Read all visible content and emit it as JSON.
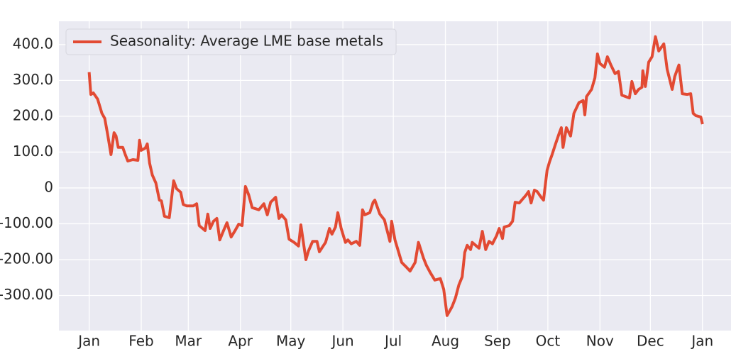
{
  "chart_data": {
    "type": "line",
    "x": [
      0,
      1,
      2.5,
      5,
      7.6,
      9.3,
      11,
      13,
      14.8,
      16,
      17.3,
      20,
      21.5,
      23,
      26,
      29,
      30,
      31,
      33.4,
      34.6,
      36,
      37.6,
      39.7,
      41.8,
      43,
      44.8,
      47.7,
      50.3,
      52,
      54.5,
      56,
      58,
      62,
      64,
      65.5,
      69,
      70.6,
      72,
      74,
      76,
      77.7,
      80,
      82,
      84.5,
      86.6,
      89,
      91,
      93,
      95,
      97,
      101,
      104,
      106,
      108,
      111,
      113,
      114.5,
      117,
      119,
      122,
      124.6,
      126,
      129,
      130.5,
      133,
      135.6,
      137,
      140.7,
      143,
      144.5,
      146.6,
      148,
      150,
      152.5,
      154,
      156,
      159,
      161,
      162.7,
      164,
      167,
      169,
      170,
      173,
      175.7,
      177,
      179,
      180,
      182,
      186,
      189,
      191,
      194,
      196,
      199,
      200.7,
      203,
      205.7,
      209,
      211,
      213,
      216,
      218,
      220,
      222,
      223.5,
      225,
      227,
      228,
      230,
      232,
      234,
      236,
      238,
      240,
      242.5,
      244,
      246,
      247,
      250,
      252,
      253.5,
      256,
      260,
      261.5,
      263,
      265,
      266.6,
      269,
      270.4,
      272.5,
      274,
      275.5,
      277.6,
      279.7,
      281,
      282,
      284,
      286.5,
      288.5,
      291.5,
      294,
      295,
      296,
      299,
      301,
      302.5,
      304,
      306.7,
      308.4,
      310.5,
      313,
      315,
      317,
      321.5,
      323,
      325,
      327,
      329,
      329.5,
      331,
      333,
      335,
      337,
      339,
      342,
      344,
      347,
      348.5,
      351,
      353,
      356,
      358,
      359.5,
      361,
      364,
      365
    ],
    "series": [
      {
        "name": "Seasonality: Average LME base metals",
        "color": "#e24a33",
        "values": [
          323,
          261,
          265,
          248,
          208,
          194,
          149,
          93,
          154,
          145,
          113,
          113,
          93,
          75,
          79,
          77,
          133,
          105,
          111,
          123,
          69,
          36,
          14,
          -34,
          -36,
          -79,
          -83,
          20,
          -2,
          -12,
          -46,
          -50,
          -50,
          -44,
          -105,
          -119,
          -73,
          -113,
          -93,
          -85,
          -145,
          -119,
          -97,
          -137,
          -121,
          -101,
          -105,
          4,
          -20,
          -55,
          -61,
          -44,
          -75,
          -40,
          -26,
          -85,
          -75,
          -89,
          -143,
          -152,
          -162,
          -103,
          -200,
          -176,
          -149,
          -149,
          -178,
          -152,
          -113,
          -129,
          -109,
          -69,
          -113,
          -152,
          -145,
          -156,
          -149,
          -160,
          -61,
          -75,
          -69,
          -40,
          -34,
          -73,
          -89,
          -113,
          -149,
          -93,
          -145,
          -208,
          -222,
          -232,
          -208,
          -152,
          -196,
          -216,
          -236,
          -257,
          -253,
          -283,
          -356,
          -331,
          -307,
          -271,
          -248,
          -180,
          -160,
          -172,
          -152,
          -160,
          -168,
          -121,
          -172,
          -149,
          -156,
          -133,
          -113,
          -141,
          -109,
          -105,
          -93,
          -40,
          -42,
          -20,
          -10,
          -42,
          -6,
          -10,
          -26,
          -34,
          49,
          73,
          93,
          123,
          152,
          168,
          113,
          168,
          145,
          208,
          238,
          244,
          204,
          255,
          275,
          307,
          374,
          347,
          337,
          366,
          343,
          319,
          325,
          259,
          251,
          297,
          263,
          275,
          281,
          327,
          283,
          351,
          366,
          422,
          382,
          402,
          331,
          275,
          311,
          343,
          263,
          261,
          263,
          208,
          202,
          198,
          178
        ]
      }
    ],
    "xlim": [
      -18,
      382
    ],
    "xticks": [
      {
        "value": 0,
        "label": "Jan"
      },
      {
        "value": 31,
        "label": "Feb"
      },
      {
        "value": 59,
        "label": "Mar"
      },
      {
        "value": 90,
        "label": "Apr"
      },
      {
        "value": 120,
        "label": "May"
      },
      {
        "value": 151,
        "label": "Jun"
      },
      {
        "value": 181,
        "label": "Jul"
      },
      {
        "value": 212,
        "label": "Aug"
      },
      {
        "value": 243,
        "label": "Sep"
      },
      {
        "value": 273,
        "label": "Oct"
      },
      {
        "value": 304,
        "label": "Nov"
      },
      {
        "value": 334,
        "label": "Dec"
      },
      {
        "value": 365,
        "label": "Jan"
      }
    ],
    "ylim": [
      -398,
      465
    ],
    "yticks": [
      {
        "value": 400,
        "label": "400.0"
      },
      {
        "value": 300,
        "label": "300.0"
      },
      {
        "value": 200,
        "label": "200.0"
      },
      {
        "value": 100,
        "label": "100.0"
      },
      0,
      {
        "value": -100,
        "label": "-100.00"
      },
      {
        "value": -200,
        "label": "-200.00"
      },
      {
        "value": -300,
        "label": "-300.00"
      }
    ],
    "grid": true,
    "legend": "upper left"
  }
}
